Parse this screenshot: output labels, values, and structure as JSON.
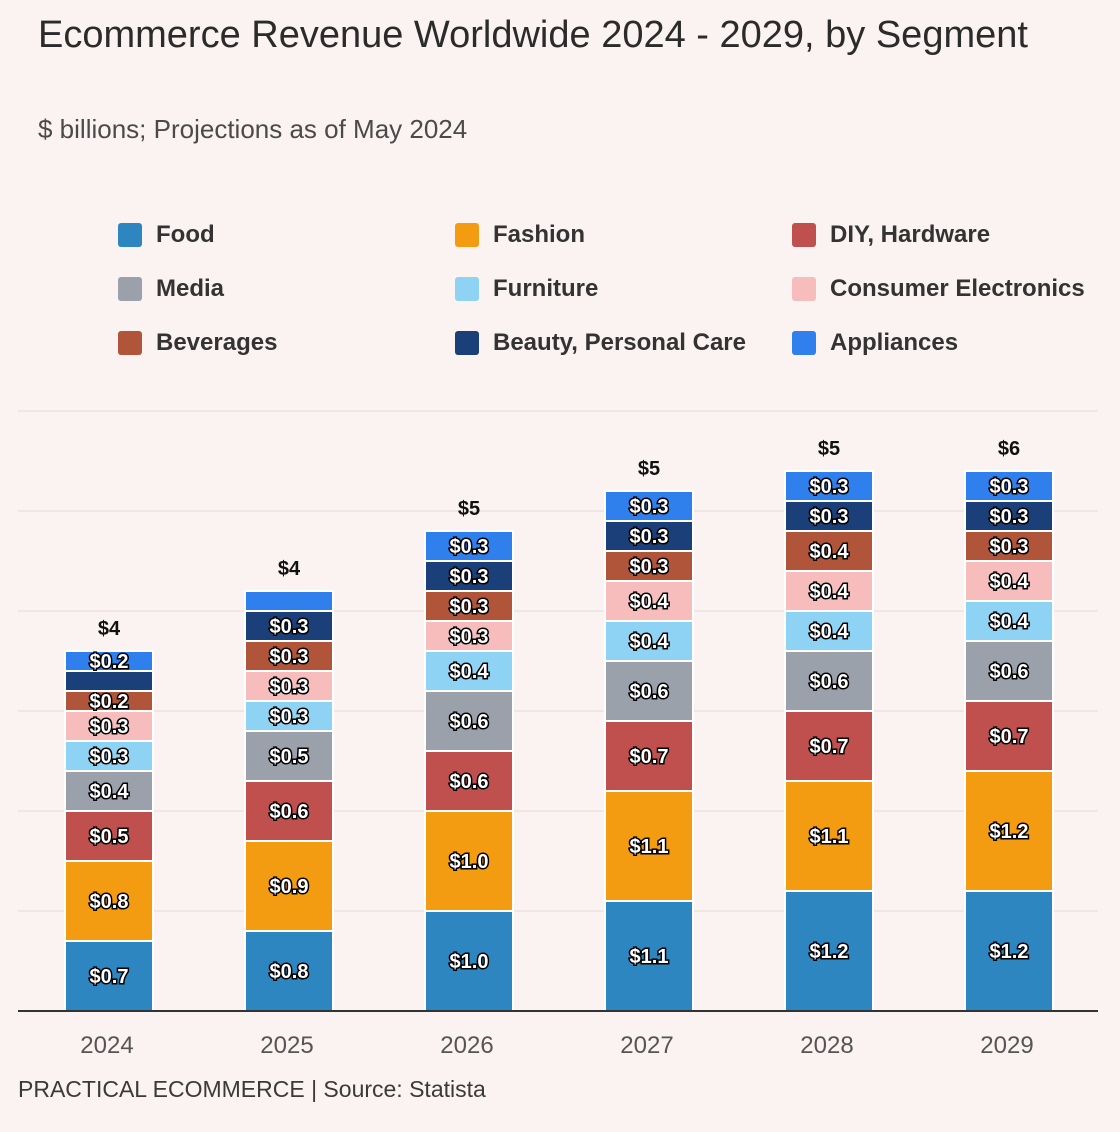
{
  "chart_data": {
    "type": "bar",
    "stacked": true,
    "title": "Ecommerce Revenue Worldwide 2024 - 2029, by Segment",
    "subtitle": "$ billions; Projections as of May 2024",
    "xlabel": "",
    "ylabel": "",
    "ylim": [
      0,
      6
    ],
    "legend_position": "top",
    "categories": [
      "2024",
      "2025",
      "2026",
      "2027",
      "2028",
      "2029"
    ],
    "totals": [
      "$4",
      "$4",
      "$5",
      "$5",
      "$5",
      "$6"
    ],
    "series": [
      {
        "name": "Food",
        "color": "#2e86c1",
        "values": [
          0.7,
          0.8,
          1.0,
          1.1,
          1.2,
          1.2
        ],
        "labels": [
          "$0.7",
          "$0.8",
          "$1.0",
          "$1.1",
          "$1.2",
          "$1.2"
        ]
      },
      {
        "name": "Fashion",
        "color": "#f39c12",
        "values": [
          0.8,
          0.9,
          1.0,
          1.1,
          1.1,
          1.2
        ],
        "labels": [
          "$0.8",
          "$0.9",
          "$1.0",
          "$1.1",
          "$1.1",
          "$1.2"
        ]
      },
      {
        "name": "DIY, Hardware",
        "color": "#c0504d",
        "values": [
          0.5,
          0.6,
          0.6,
          0.7,
          0.7,
          0.7
        ],
        "labels": [
          "$0.5",
          "$0.6",
          "$0.6",
          "$0.7",
          "$0.7",
          "$0.7"
        ]
      },
      {
        "name": "Media",
        "color": "#9aa1ab",
        "values": [
          0.4,
          0.5,
          0.6,
          0.6,
          0.6,
          0.6
        ],
        "labels": [
          "$0.4",
          "$0.5",
          "$0.6",
          "$0.6",
          "$0.6",
          "$0.6"
        ]
      },
      {
        "name": "Furniture",
        "color": "#8fd3f4",
        "values": [
          0.3,
          0.3,
          0.4,
          0.4,
          0.4,
          0.4
        ],
        "labels": [
          "$0.3",
          "$0.3",
          "$0.4",
          "$0.4",
          "$0.4",
          "$0.4"
        ]
      },
      {
        "name": "Consumer Electronics",
        "color": "#f7bcbc",
        "values": [
          0.3,
          0.3,
          0.3,
          0.4,
          0.4,
          0.4
        ],
        "labels": [
          "$0.3",
          "$0.3",
          "$0.3",
          "$0.4",
          "$0.4",
          "$0.4"
        ]
      },
      {
        "name": "Beverages",
        "color": "#b0553a",
        "values": [
          0.2,
          0.3,
          0.3,
          0.3,
          0.4,
          0.3
        ],
        "labels": [
          "$0.2",
          "$0.3",
          "$0.3",
          "$0.3",
          "$0.4",
          "$0.3"
        ]
      },
      {
        "name": "Beauty, Personal Care",
        "color": "#1b3f78",
        "values": [
          0.2,
          0.3,
          0.3,
          0.3,
          0.3,
          0.3
        ],
        "labels": [
          "",
          "$0.3",
          "$0.3",
          "$0.3",
          "$0.3",
          "$0.3"
        ]
      },
      {
        "name": "Appliances",
        "color": "#2f80ed",
        "values": [
          0.2,
          0.2,
          0.3,
          0.3,
          0.3,
          0.3
        ],
        "labels": [
          "$0.2",
          "",
          "$0.3",
          "$0.3",
          "$0.3",
          "$0.3"
        ]
      }
    ],
    "legend_order": [
      "Food",
      "Fashion",
      "DIY, Hardware",
      "Media",
      "Furniture",
      "Consumer Electronics",
      "Beverages",
      "Beauty, Personal Care",
      "Appliances"
    ]
  },
  "footer": "PRACTICAL ECOMMERCE | Source: Statista"
}
